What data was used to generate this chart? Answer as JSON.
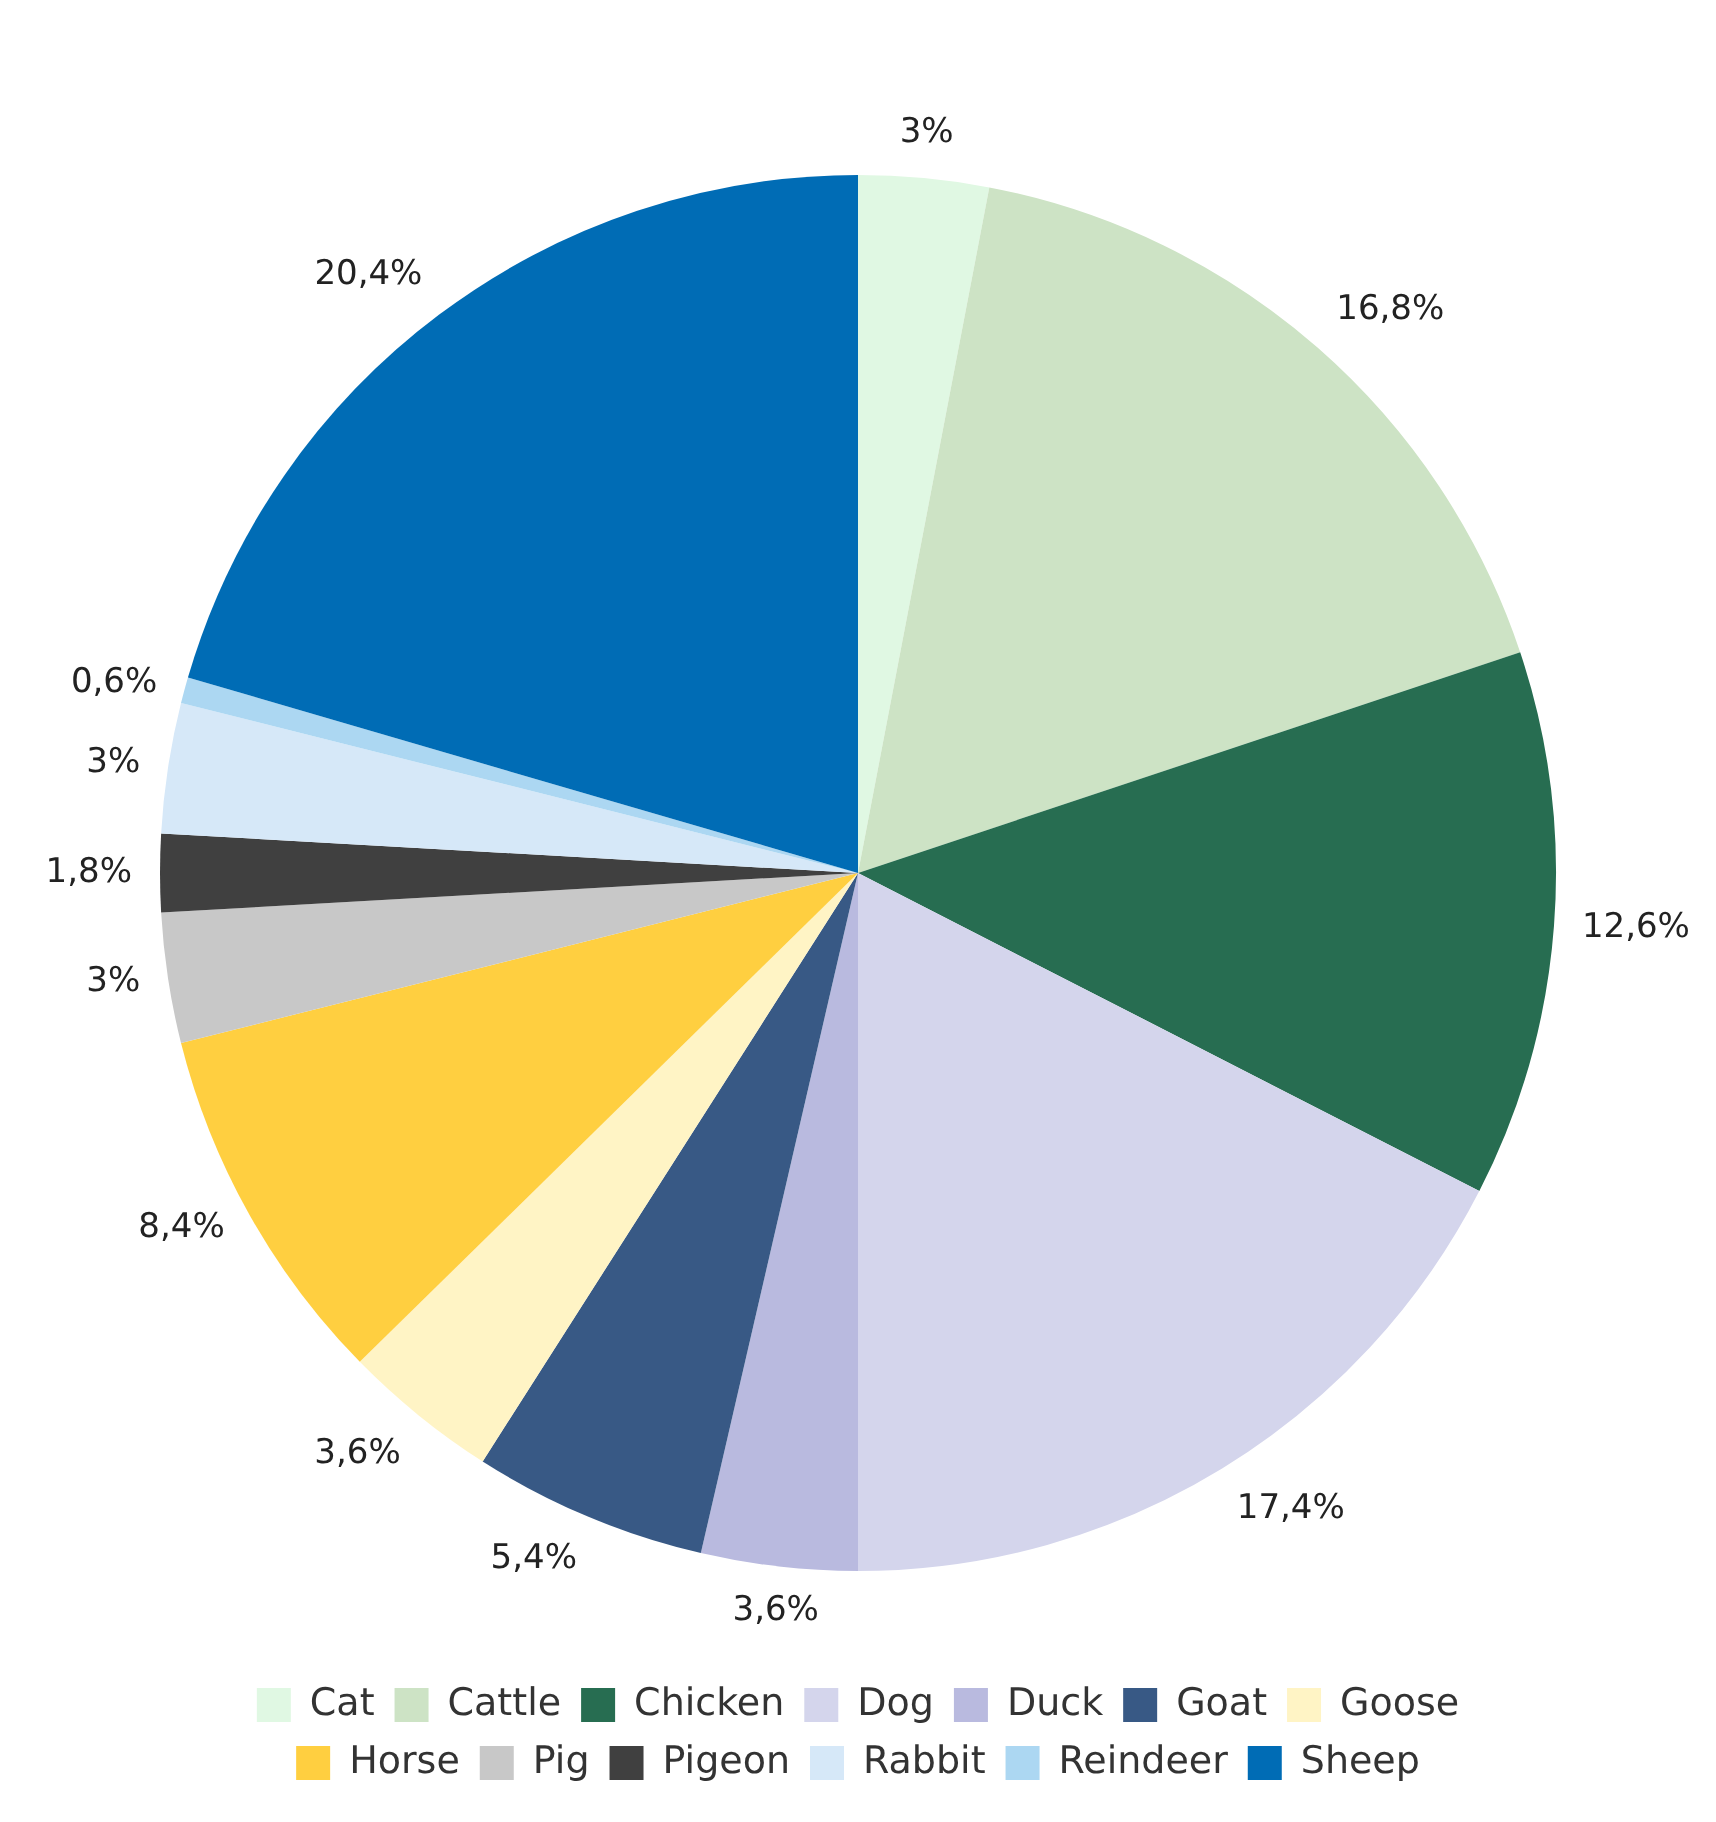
{
  "chart_data": {
    "type": "pie",
    "categories": [
      "Cat",
      "Cattle",
      "Chicken",
      "Dog",
      "Duck",
      "Goat",
      "Goose",
      "Horse",
      "Pig",
      "Pigeon",
      "Rabbit",
      "Reindeer",
      "Sheep"
    ],
    "values": [
      3,
      16.8,
      12.6,
      17.4,
      3.6,
      5.4,
      3.6,
      8.4,
      3,
      1.8,
      3,
      0.6,
      20.4
    ],
    "value_labels": [
      "3%",
      "16,8%",
      "12,6%",
      "17,4%",
      "3,6%",
      "5,4%",
      "3,6%",
      "8,4%",
      "3%",
      "1,8%",
      "3%",
      "0,6%",
      "20,4%"
    ],
    "colors": [
      "#e0f8e3",
      "#cde3c5",
      "#276d51",
      "#d4d5ec",
      "#b9badf",
      "#385985",
      "#fff4c5",
      "#ffcf40",
      "#c8c8c8",
      "#404040",
      "#d6e8f8",
      "#acd7f2",
      "#006cb5"
    ],
    "legend": "bottom"
  }
}
